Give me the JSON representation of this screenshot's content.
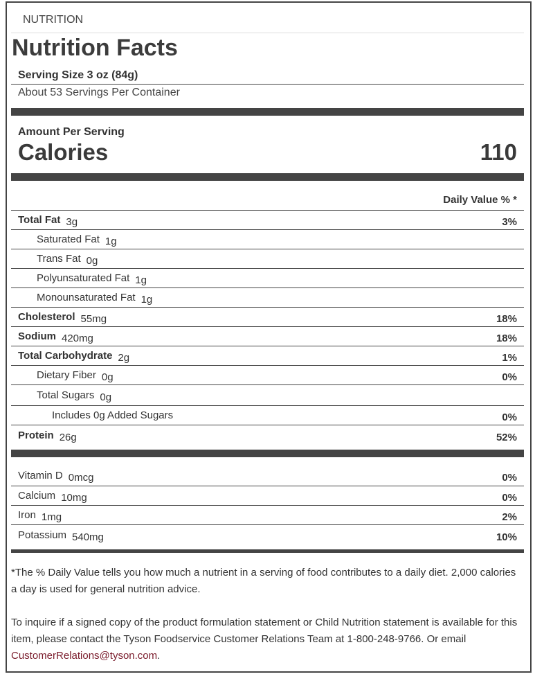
{
  "section_label": "NUTRITION",
  "title": "Nutrition Facts",
  "serving_size": "Serving Size 3 oz (84g)",
  "servings_per_container": "About 53 Servings Per Container",
  "amount_per_serving": "Amount Per Serving",
  "calories_label": "Calories",
  "calories_value": "110",
  "daily_value_header": "Daily Value % *",
  "nutrients": [
    {
      "name": "Total Fat",
      "amount": "3g",
      "dv": "3%",
      "bold": true,
      "indent": 0
    },
    {
      "name": "Saturated Fat",
      "amount": "1g",
      "dv": "",
      "bold": false,
      "indent": 1
    },
    {
      "name": "Trans Fat",
      "amount": "0g",
      "dv": "",
      "bold": false,
      "indent": 1
    },
    {
      "name": "Polyunsaturated Fat",
      "amount": "1g",
      "dv": "",
      "bold": false,
      "indent": 1
    },
    {
      "name": "Monounsaturated Fat",
      "amount": "1g",
      "dv": "",
      "bold": false,
      "indent": 1
    },
    {
      "name": "Cholesterol",
      "amount": "55mg",
      "dv": "18%",
      "bold": true,
      "indent": 0
    },
    {
      "name": "Sodium",
      "amount": "420mg",
      "dv": "18%",
      "bold": true,
      "indent": 0
    },
    {
      "name": "Total Carbohydrate",
      "amount": "2g",
      "dv": "1%",
      "bold": true,
      "indent": 0
    },
    {
      "name": "Dietary Fiber",
      "amount": "0g",
      "dv": "0%",
      "bold": false,
      "indent": 1
    },
    {
      "name": "Total Sugars",
      "amount": "0g",
      "dv": "",
      "bold": false,
      "indent": 1
    },
    {
      "name": "Includes 0g Added Sugars",
      "amount": "",
      "dv": "0%",
      "bold": false,
      "indent": 2
    },
    {
      "name": "Protein",
      "amount": "26g",
      "dv": "52%",
      "bold": true,
      "indent": 0
    }
  ],
  "vitamins": [
    {
      "name": "Vitamin D",
      "amount": "0mcg",
      "dv": "0%"
    },
    {
      "name": "Calcium",
      "amount": "10mg",
      "dv": "0%"
    },
    {
      "name": "Iron",
      "amount": "1mg",
      "dv": "2%"
    },
    {
      "name": "Potassium",
      "amount": "540mg",
      "dv": "10%"
    }
  ],
  "footnote": "*The % Daily Value tells you how much a nutrient in a serving of food contributes to a daily diet. 2,000 calories a day is used for general nutrition advice.",
  "inquiry_text": "To inquire if a signed copy of the product formulation statement or Child Nutrition statement is available for this item, please contact the Tyson Foodservice Customer Relations Team at 1-800-248-9766. Or email ",
  "email": "CustomerRelations@tyson.com",
  "inquiry_end": ".",
  "colors": {
    "rule": "#444444",
    "link": "#7a1b2b"
  }
}
